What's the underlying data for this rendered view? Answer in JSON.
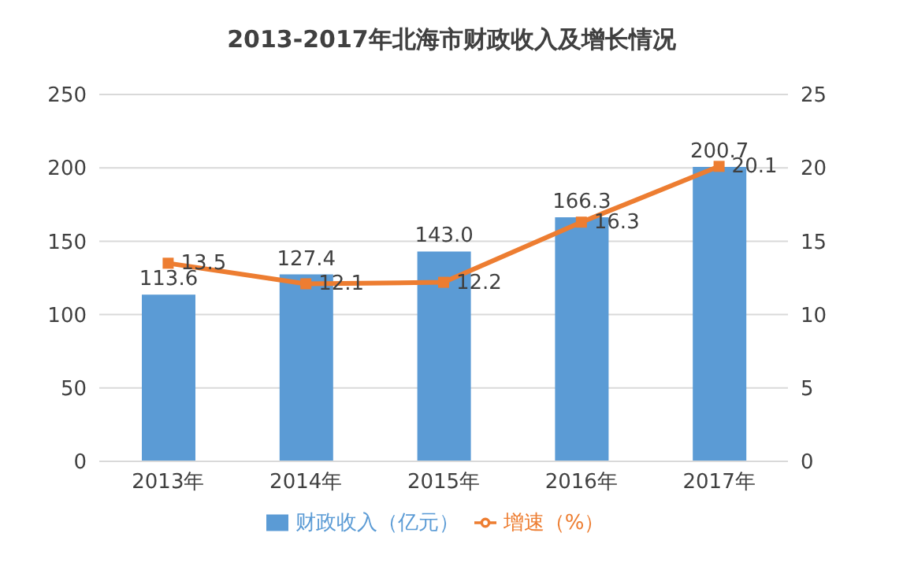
{
  "chart_data": {
    "type": "bar",
    "title": "2013-2017年北海市财政收入及增长情况",
    "categories": [
      "2013年",
      "2014年",
      "2015年",
      "2016年",
      "2017年"
    ],
    "series": [
      {
        "name": "财政收入（亿元）",
        "color": "#5b9bd5",
        "values": [
          113.6,
          127.4,
          143.0,
          166.3,
          200.7
        ],
        "value_labels": [
          "113.6",
          "127.4",
          "143.0",
          "166.3",
          "200.7"
        ]
      },
      {
        "name": "增速（%）",
        "type": "line",
        "axis": "y2",
        "color": "#ed7d31",
        "marker": "square",
        "values": [
          13.5,
          12.1,
          12.2,
          16.3,
          20.1
        ],
        "value_labels": [
          "13.5",
          "12.1",
          "12.2",
          "16.3",
          "20.1"
        ]
      }
    ],
    "ylim": [
      0,
      250
    ],
    "yticks": [
      0,
      50,
      100,
      150,
      200,
      250
    ],
    "y2lim": [
      0,
      25
    ],
    "y2ticks": [
      0,
      5,
      10,
      15,
      20,
      25
    ],
    "grid": "y",
    "legend": "bottom"
  }
}
